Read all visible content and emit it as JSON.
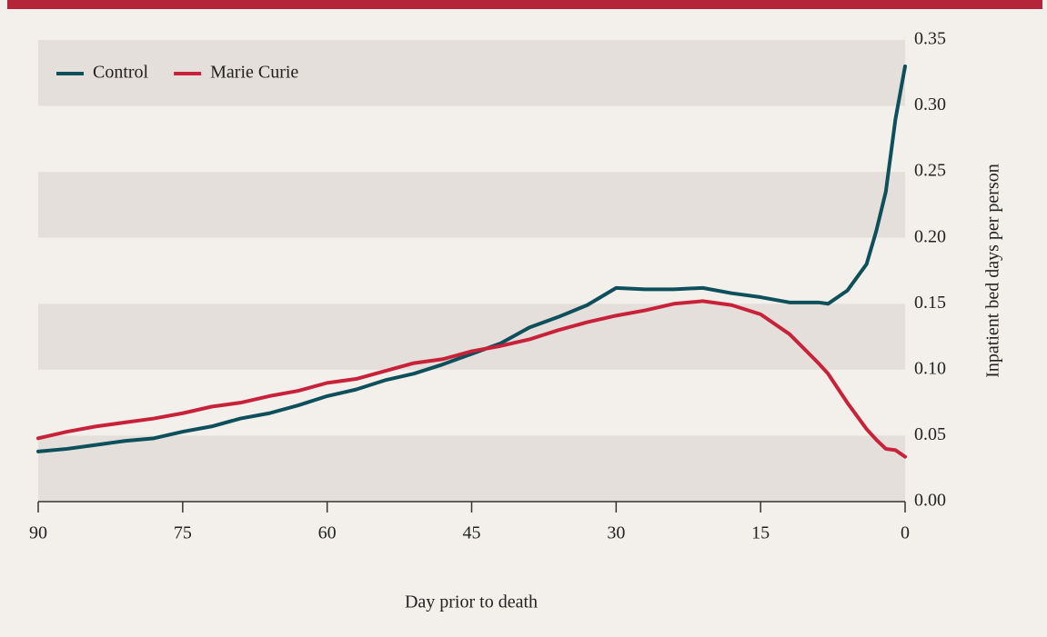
{
  "chart_data": {
    "type": "line",
    "x_label": "Day prior to death",
    "y_label": "Inpatient bed days per person",
    "x": [
      90,
      87,
      84,
      81,
      78,
      75,
      72,
      69,
      66,
      63,
      60,
      57,
      54,
      51,
      48,
      45,
      42,
      39,
      36,
      33,
      30,
      27,
      24,
      21,
      18,
      15,
      12,
      9,
      8,
      6,
      4,
      3,
      2,
      1,
      0
    ],
    "series": [
      {
        "name": "Control",
        "color": "#0e4f5c",
        "values": [
          0.038,
          0.04,
          0.043,
          0.046,
          0.048,
          0.053,
          0.057,
          0.063,
          0.067,
          0.073,
          0.08,
          0.085,
          0.092,
          0.097,
          0.104,
          0.112,
          0.12,
          0.132,
          0.14,
          0.149,
          0.162,
          0.161,
          0.161,
          0.162,
          0.158,
          0.155,
          0.151,
          0.151,
          0.15,
          0.16,
          0.18,
          0.205,
          0.235,
          0.29,
          0.33
        ]
      },
      {
        "name": "Marie Curie",
        "color": "#c8213a",
        "values": [
          0.048,
          0.053,
          0.057,
          0.06,
          0.063,
          0.067,
          0.072,
          0.075,
          0.08,
          0.084,
          0.09,
          0.093,
          0.099,
          0.105,
          0.108,
          0.114,
          0.118,
          0.123,
          0.13,
          0.136,
          0.141,
          0.145,
          0.15,
          0.152,
          0.149,
          0.142,
          0.127,
          0.105,
          0.097,
          0.075,
          0.055,
          0.047,
          0.04,
          0.039,
          0.034
        ]
      }
    ],
    "xlim": [
      90,
      0
    ],
    "xticks": [
      90,
      75,
      60,
      45,
      30,
      15,
      0
    ],
    "ylim": [
      0,
      0.35
    ],
    "yticks": [
      {
        "value": 0,
        "label": "0.00"
      },
      {
        "value": 0.05,
        "label": "0.05"
      },
      {
        "value": 0.1,
        "label": "0.10"
      },
      {
        "value": 0.15,
        "label": "0.15"
      },
      {
        "value": 0.2,
        "label": "0.20"
      },
      {
        "value": 0.25,
        "label": "0.25"
      },
      {
        "value": 0.3,
        "label": "0.30"
      },
      {
        "value": 0.35,
        "label": "0.35"
      }
    ],
    "y_axis_side": "right",
    "banded_background": true,
    "legend": "top-left"
  }
}
